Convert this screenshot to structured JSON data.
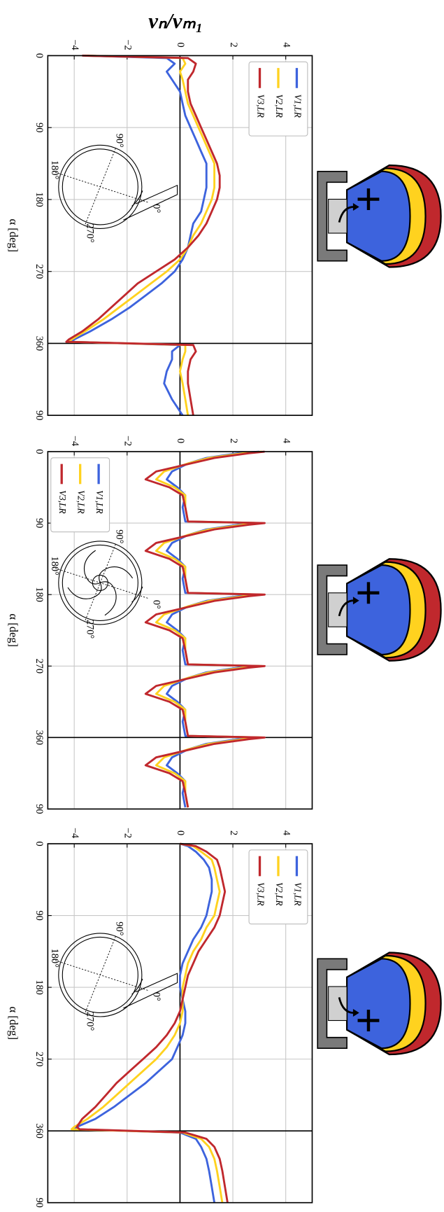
{
  "title": "vₙ/vₘ₁",
  "chart_data": [
    {
      "type": "line",
      "xlabel": "α [deg]",
      "xlim": [
        0,
        450
      ],
      "ylim": [
        -5,
        5
      ],
      "xticks": [
        0,
        90,
        180,
        270,
        360,
        {
          "value": 450,
          "label": "90"
        }
      ],
      "yticks": [
        {
          "value": -4,
          "label": "−4"
        },
        {
          "value": -2,
          "label": "−2"
        },
        0,
        2,
        4
      ],
      "grid": true,
      "legend": "upper right",
      "inset_labels": [
        "90°",
        "180°",
        "270°",
        "0°"
      ],
      "x": [
        0,
        3,
        10,
        20,
        30,
        45,
        60,
        75,
        90,
        105,
        120,
        135,
        150,
        165,
        180,
        195,
        210,
        225,
        240,
        255,
        270,
        285,
        300,
        315,
        330,
        345,
        355,
        358,
        362,
        370,
        380,
        395,
        410,
        430,
        450
      ],
      "series": [
        {
          "name": "V1,LR",
          "color": "#3d63dd",
          "values": [
            -3.5,
            -0.5,
            -0.2,
            -0.5,
            -0.3,
            0,
            0.1,
            0.2,
            0.4,
            0.6,
            0.8,
            1.0,
            1.0,
            1.0,
            0.9,
            0.8,
            0.5,
            0.4,
            0.3,
            0.1,
            -0.2,
            -0.7,
            -1.3,
            -1.9,
            -2.6,
            -3.4,
            -4.0,
            -4.1,
            0.0,
            -0.3,
            -0.3,
            -0.5,
            -0.6,
            -0.3,
            0.1
          ]
        },
        {
          "name": "V2,LR",
          "color": "#ffd21f",
          "values": [
            -3.6,
            0.1,
            0.2,
            0.0,
            0.1,
            0.2,
            0.3,
            0.5,
            0.7,
            0.9,
            1.1,
            1.3,
            1.3,
            1.3,
            1.2,
            1.0,
            0.8,
            0.5,
            0.3,
            0.0,
            -0.5,
            -1.1,
            -1.7,
            -2.3,
            -2.9,
            -3.6,
            -4.1,
            -4.2,
            0.2,
            0.2,
            0.1,
            0.0,
            0.1,
            0.2,
            0.3
          ]
        },
        {
          "name": "V3,LR",
          "color": "#c0282d",
          "values": [
            -3.7,
            0.3,
            0.6,
            0.5,
            0.3,
            0.3,
            0.4,
            0.6,
            0.8,
            1.0,
            1.2,
            1.4,
            1.5,
            1.5,
            1.4,
            1.2,
            1.0,
            0.7,
            0.3,
            -0.2,
            -0.9,
            -1.6,
            -2.1,
            -2.6,
            -3.1,
            -3.7,
            -4.2,
            -4.3,
            0.5,
            0.6,
            0.4,
            0.3,
            0.3,
            0.4,
            0.5
          ]
        }
      ]
    },
    {
      "type": "line",
      "xlabel": "α [deg]",
      "xlim": [
        0,
        450
      ],
      "ylim": [
        -5,
        5
      ],
      "xticks": [
        0,
        90,
        180,
        270,
        360,
        {
          "value": 450,
          "label": "90"
        }
      ],
      "yticks": [
        {
          "value": -4,
          "label": "−4"
        },
        {
          "value": -2,
          "label": "−2"
        },
        0,
        2,
        4
      ],
      "grid": true,
      "legend": "upper left",
      "inset_labels": [
        "90°",
        "180°",
        "270°",
        "0°"
      ],
      "x": [
        0,
        2,
        8,
        15,
        25,
        35,
        45,
        55,
        70,
        88,
        90,
        92,
        98,
        105,
        115,
        125,
        135,
        145,
        160,
        178,
        180,
        182,
        188,
        195,
        205,
        215,
        225,
        235,
        250,
        268,
        270,
        272,
        278,
        285,
        295,
        305,
        315,
        325,
        340,
        358,
        360,
        362,
        368,
        375,
        385,
        395,
        405,
        415,
        430,
        448
      ],
      "series": [
        {
          "name": "V1,LR",
          "color": "#3d63dd",
          "values": [
            3.0,
            2.2,
            1.0,
            0.3,
            -0.3,
            -0.5,
            -0.1,
            0.2,
            0.1,
            0.2,
            3.0,
            2.2,
            1.0,
            0.3,
            -0.3,
            -0.5,
            -0.1,
            0.2,
            0.1,
            0.2,
            3.0,
            2.2,
            1.0,
            0.3,
            -0.3,
            -0.5,
            -0.1,
            0.2,
            0.1,
            0.2,
            3.0,
            2.2,
            1.0,
            0.3,
            -0.3,
            -0.5,
            -0.1,
            0.2,
            0.1,
            0.2,
            3.0,
            2.2,
            1.0,
            0.3,
            -0.3,
            -0.5,
            -0.1,
            0.2,
            0.1,
            0.2
          ]
        },
        {
          "name": "V2,LR",
          "color": "#ffd21f",
          "values": [
            3.1,
            2.4,
            1.1,
            0.3,
            -0.6,
            -0.9,
            -0.2,
            0.2,
            0.2,
            0.3,
            3.1,
            2.4,
            1.1,
            0.3,
            -0.6,
            -0.9,
            -0.2,
            0.2,
            0.2,
            0.3,
            3.1,
            2.4,
            1.1,
            0.3,
            -0.6,
            -0.9,
            -0.2,
            0.2,
            0.2,
            0.3,
            3.1,
            2.4,
            1.1,
            0.3,
            -0.6,
            -0.9,
            -0.2,
            0.2,
            0.2,
            0.3,
            3.1,
            2.4,
            1.1,
            0.3,
            -0.6,
            -0.9,
            -0.2,
            0.2,
            0.2,
            0.3
          ]
        },
        {
          "name": "V3,LR",
          "color": "#c0282d",
          "values": [
            3.2,
            2.6,
            1.3,
            0.4,
            -0.9,
            -1.3,
            -0.4,
            0.1,
            0.2,
            0.3,
            3.2,
            2.6,
            1.3,
            0.4,
            -0.9,
            -1.3,
            -0.4,
            0.1,
            0.2,
            0.3,
            3.2,
            2.6,
            1.3,
            0.4,
            -0.9,
            -1.3,
            -0.4,
            0.1,
            0.2,
            0.3,
            3.2,
            2.6,
            1.3,
            0.4,
            -0.9,
            -1.3,
            -0.4,
            0.1,
            0.2,
            0.3,
            3.2,
            2.6,
            1.3,
            0.4,
            -0.9,
            -1.3,
            -0.4,
            0.1,
            0.2,
            0.3
          ]
        }
      ]
    },
    {
      "type": "line",
      "xlabel": "α [deg]",
      "xlim": [
        0,
        450
      ],
      "ylim": [
        -5,
        5
      ],
      "xticks": [
        0,
        90,
        180,
        270,
        360,
        {
          "value": 450,
          "label": "90"
        }
      ],
      "yticks": [
        {
          "value": -4,
          "label": "−4"
        },
        {
          "value": -2,
          "label": "−2"
        },
        0,
        2,
        4
      ],
      "grid": true,
      "legend": "upper right",
      "inset_labels": [
        "90°",
        "180°",
        "270°",
        "0°"
      ],
      "x": [
        0,
        3,
        10,
        20,
        30,
        45,
        60,
        75,
        90,
        105,
        120,
        135,
        150,
        165,
        180,
        195,
        210,
        225,
        240,
        255,
        270,
        285,
        300,
        315,
        330,
        345,
        355,
        358,
        362,
        370,
        380,
        395,
        410,
        430,
        450
      ],
      "series": [
        {
          "name": "V1,LR",
          "color": "#3d63dd",
          "values": [
            0,
            0.3,
            0.6,
            0.9,
            1.1,
            1.2,
            1.2,
            1.1,
            1.0,
            0.8,
            0.5,
            0.3,
            0.1,
            0.0,
            0.0,
            0.1,
            0.2,
            0.2,
            0.1,
            -0.1,
            -0.3,
            -0.8,
            -1.3,
            -1.9,
            -2.5,
            -3.2,
            -3.9,
            -4.0,
            0.0,
            0.6,
            0.8,
            1.0,
            1.1,
            1.2,
            1.3
          ]
        },
        {
          "name": "V2,LR",
          "color": "#ffd21f",
          "values": [
            0,
            0.5,
            0.8,
            1.2,
            1.3,
            1.4,
            1.5,
            1.4,
            1.3,
            1.0,
            0.8,
            0.5,
            0.3,
            0.2,
            0.1,
            0.1,
            0.1,
            0.0,
            -0.2,
            -0.5,
            -0.9,
            -1.4,
            -1.9,
            -2.4,
            -2.9,
            -3.5,
            -4.0,
            -4.1,
            0.1,
            0.8,
            1.1,
            1.3,
            1.4,
            1.5,
            1.6
          ]
        },
        {
          "name": "V3,LR",
          "color": "#c0282d",
          "values": [
            0,
            0.6,
            1.0,
            1.4,
            1.5,
            1.6,
            1.7,
            1.6,
            1.5,
            1.3,
            1.0,
            0.7,
            0.5,
            0.3,
            0.2,
            0.1,
            0.0,
            -0.2,
            -0.5,
            -0.9,
            -1.4,
            -1.9,
            -2.4,
            -2.8,
            -3.2,
            -3.7,
            -3.9,
            -3.8,
            0.2,
            1.0,
            1.3,
            1.5,
            1.6,
            1.7,
            1.8
          ]
        }
      ]
    }
  ]
}
